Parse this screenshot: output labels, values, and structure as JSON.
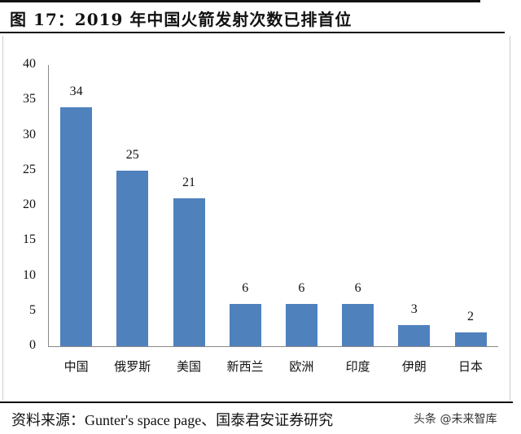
{
  "title": "图 17：2019 年中国火箭发射次数已排首位",
  "source": "资料来源：Gunter's space page、国泰君安证券研究",
  "watermark": "头条 @未来智库",
  "chart_data": {
    "type": "bar",
    "title": "2019年中国火箭发射次数已排首位",
    "categories": [
      "中国",
      "俄罗斯",
      "美国",
      "新西兰",
      "欧洲",
      "印度",
      "伊朗",
      "日本"
    ],
    "values": [
      34,
      25,
      21,
      6,
      6,
      6,
      3,
      2
    ],
    "xlabel": "",
    "ylabel": "",
    "ylim": [
      0,
      40
    ],
    "yticks": [
      0,
      5,
      10,
      15,
      20,
      25,
      30,
      35,
      40
    ],
    "grid": false,
    "legend": null,
    "bar_color": "#4f81bd",
    "data_labels": true
  }
}
